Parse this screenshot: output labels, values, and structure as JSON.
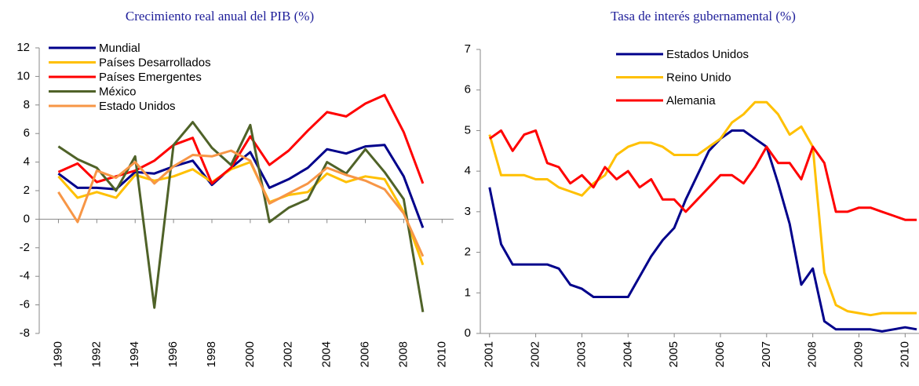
{
  "chart_data": [
    {
      "type": "line",
      "title": "Crecimiento real anual del PIB (%)",
      "x": [
        1990,
        1991,
        1992,
        1993,
        1994,
        1995,
        1996,
        1997,
        1998,
        1999,
        2000,
        2001,
        2002,
        2003,
        2004,
        2005,
        2006,
        2007,
        2008,
        2009
      ],
      "series": [
        {
          "name": "Mundial",
          "color": "#00008b",
          "values": [
            3.2,
            2.2,
            2.2,
            2.1,
            3.3,
            3.2,
            3.7,
            4.1,
            2.4,
            3.6,
            4.7,
            2.2,
            2.8,
            3.6,
            4.9,
            4.6,
            5.1,
            5.2,
            3.0,
            -0.6
          ]
        },
        {
          "name": "Países Desarrollados",
          "color": "#ffc000",
          "values": [
            3.0,
            1.5,
            1.9,
            1.5,
            3.1,
            2.7,
            3.0,
            3.5,
            2.6,
            3.5,
            4.0,
            1.2,
            1.7,
            1.9,
            3.2,
            2.6,
            3.0,
            2.8,
            0.5,
            -3.2
          ]
        },
        {
          "name": "Países Emergentes",
          "color": "#ff0000",
          "values": [
            3.3,
            3.9,
            2.6,
            3.0,
            3.4,
            4.1,
            5.2,
            5.7,
            2.5,
            3.6,
            5.8,
            3.8,
            4.8,
            6.2,
            7.5,
            7.2,
            8.1,
            8.7,
            6.1,
            2.5
          ]
        },
        {
          "name": "México",
          "color": "#4f6228",
          "values": [
            5.1,
            4.2,
            3.6,
            2.0,
            4.4,
            -6.2,
            5.2,
            6.8,
            5.0,
            3.8,
            6.6,
            -0.2,
            0.8,
            1.4,
            4.0,
            3.2,
            4.9,
            3.3,
            1.4,
            -6.5
          ]
        },
        {
          "name": "Estado Unidos",
          "color": "#f79646",
          "values": [
            1.9,
            -0.2,
            3.4,
            2.9,
            4.0,
            2.5,
            3.7,
            4.5,
            4.4,
            4.8,
            4.1,
            1.1,
            1.8,
            2.5,
            3.6,
            3.1,
            2.7,
            2.1,
            0.4,
            -2.6
          ]
        }
      ],
      "xlim": [
        1989,
        2010.6
      ],
      "xticks": [
        1990,
        1992,
        1994,
        1996,
        1998,
        2000,
        2002,
        2004,
        2006,
        2008,
        2010
      ],
      "ylim": [
        -8,
        12
      ],
      "yticks": [
        -8,
        -6,
        -4,
        -2,
        0,
        2,
        4,
        6,
        8,
        10,
        12
      ],
      "legend": "upper left"
    },
    {
      "type": "line",
      "title": "Tasa de interés gubernamental (%)",
      "x": [
        2001,
        2001.25,
        2001.5,
        2001.75,
        2002,
        2002.25,
        2002.5,
        2002.75,
        2003,
        2003.25,
        2003.5,
        2003.75,
        2004,
        2004.25,
        2004.5,
        2004.75,
        2005,
        2005.25,
        2005.5,
        2005.75,
        2006,
        2006.25,
        2006.5,
        2006.75,
        2007,
        2007.25,
        2007.5,
        2007.75,
        2008,
        2008.25,
        2008.5,
        2008.75,
        2009,
        2009.25,
        2009.5,
        2009.75,
        2010,
        2010.25
      ],
      "series": [
        {
          "name": "Estados Unidos",
          "color": "#00008b",
          "values": [
            3.6,
            2.2,
            1.7,
            1.7,
            1.7,
            1.7,
            1.6,
            1.2,
            1.1,
            0.9,
            0.9,
            0.9,
            0.9,
            1.4,
            1.9,
            2.3,
            2.6,
            3.3,
            3.9,
            4.5,
            4.8,
            5.0,
            5.0,
            4.8,
            4.6,
            3.7,
            2.7,
            1.2,
            1.6,
            0.3,
            0.1,
            0.1,
            0.1,
            0.1,
            0.05,
            0.1,
            0.15,
            0.1
          ]
        },
        {
          "name": "Reino Unido",
          "color": "#ffc000",
          "values": [
            4.9,
            3.9,
            3.9,
            3.9,
            3.8,
            3.8,
            3.6,
            3.5,
            3.4,
            3.7,
            3.9,
            4.4,
            4.6,
            4.7,
            4.7,
            4.6,
            4.4,
            4.4,
            4.4,
            4.6,
            4.8,
            5.2,
            5.4,
            5.7,
            5.7,
            5.4,
            4.9,
            5.1,
            4.6,
            1.5,
            0.7,
            0.55,
            0.5,
            0.45,
            0.5,
            0.5,
            0.5,
            0.5
          ]
        },
        {
          "name": "Alemania",
          "color": "#ff0000",
          "values": [
            4.8,
            5.0,
            4.5,
            4.9,
            5.0,
            4.2,
            4.1,
            3.7,
            3.9,
            3.6,
            4.1,
            3.8,
            4.0,
            3.6,
            3.8,
            3.3,
            3.3,
            3.0,
            3.3,
            3.6,
            3.9,
            3.9,
            3.7,
            4.1,
            4.6,
            4.2,
            4.2,
            3.8,
            4.6,
            4.2,
            3.0,
            3.0,
            3.1,
            3.1,
            3.0,
            2.9,
            2.8,
            2.8
          ]
        }
      ],
      "xlim": [
        2000.8,
        2010.3
      ],
      "xticks": [
        2001,
        2002,
        2003,
        2004,
        2005,
        2006,
        2007,
        2008,
        2009,
        2010
      ],
      "ylim": [
        0,
        7
      ],
      "yticks": [
        0,
        1,
        2,
        3,
        4,
        5,
        6,
        7
      ],
      "legend": "upper center"
    }
  ]
}
